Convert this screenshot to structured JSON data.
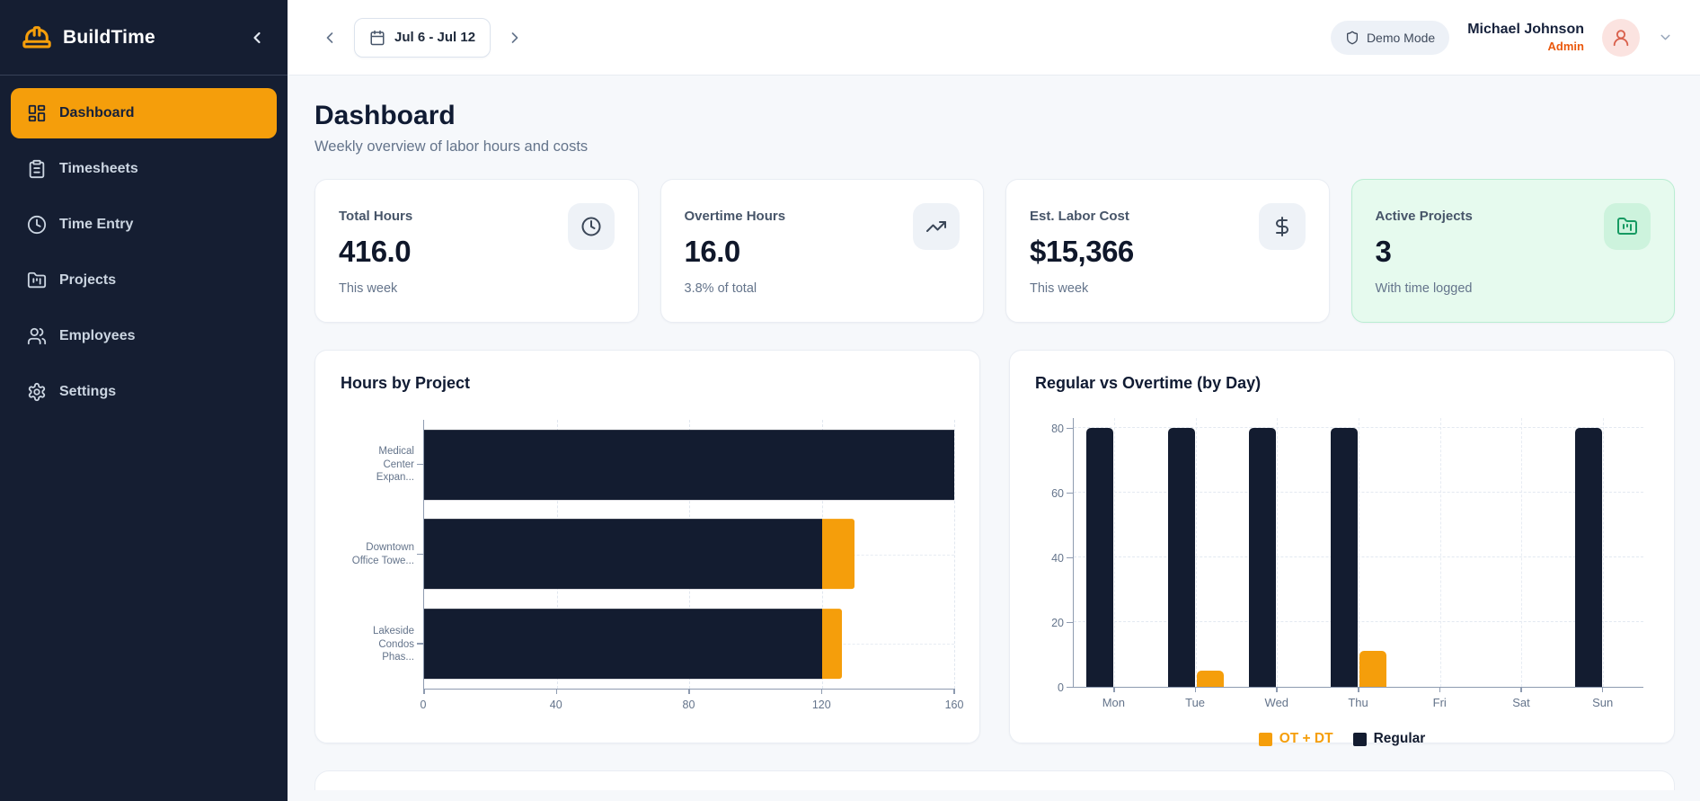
{
  "app": {
    "name": "BuildTime"
  },
  "sidebar": {
    "items": [
      {
        "label": "Dashboard",
        "icon": "dashboard-icon",
        "active": true
      },
      {
        "label": "Timesheets",
        "icon": "clipboard-icon",
        "active": false
      },
      {
        "label": "Time Entry",
        "icon": "clock-icon",
        "active": false
      },
      {
        "label": "Projects",
        "icon": "folder-kanban-icon",
        "active": false
      },
      {
        "label": "Employees",
        "icon": "users-icon",
        "active": false
      },
      {
        "label": "Settings",
        "icon": "gear-icon",
        "active": false
      }
    ]
  },
  "topbar": {
    "date_range": "Jul 6 - Jul 12",
    "demo_mode_label": "Demo Mode",
    "user": {
      "name": "Michael Johnson",
      "role": "Admin"
    }
  },
  "page": {
    "title": "Dashboard",
    "subtitle": "Weekly overview of labor hours and costs"
  },
  "stats": [
    {
      "label": "Total Hours",
      "value": "416.0",
      "sub": "This week",
      "icon": "clock-icon",
      "highlight": false
    },
    {
      "label": "Overtime Hours",
      "value": "16.0",
      "sub": "3.8% of total",
      "icon": "trending-up-icon",
      "highlight": false
    },
    {
      "label": "Est. Labor Cost",
      "value": "$15,366",
      "sub": "This week",
      "icon": "dollar-icon",
      "highlight": false
    },
    {
      "label": "Active Projects",
      "value": "3",
      "sub": "With time logged",
      "icon": "folder-icon",
      "highlight": true
    }
  ],
  "colors": {
    "accent_orange": "#f59e0b",
    "dark_navy": "#131c30",
    "sidebar_bg": "#151e32",
    "highlight_green_bg": "#e6faee",
    "highlight_green_border": "#b9edd2",
    "admin_role": "#ea580c",
    "muted_text": "#64748b"
  },
  "chart_data": [
    {
      "type": "bar",
      "orientation": "horizontal",
      "stacked": true,
      "title": "Hours by Project",
      "categories": [
        "Medical Center Expan...",
        "Downtown Office Towe...",
        "Lakeside Condos Phas..."
      ],
      "category_label_lines": [
        [
          "Medical",
          "Center",
          "Expan..."
        ],
        [
          "Downtown",
          "Office Towe..."
        ],
        [
          "Lakeside",
          "Condos",
          "Phas..."
        ]
      ],
      "series": [
        {
          "name": "Regular",
          "color": "#131c30",
          "values": [
            160,
            120,
            120
          ]
        },
        {
          "name": "OT + DT",
          "color": "#f59e0b",
          "values": [
            0,
            10,
            6
          ]
        }
      ],
      "xlim": [
        0,
        160
      ],
      "xticks": [
        0,
        40,
        80,
        120,
        160
      ],
      "grid": "dashed"
    },
    {
      "type": "bar",
      "orientation": "vertical",
      "grouped": true,
      "title": "Regular vs Overtime (by Day)",
      "categories": [
        "Mon",
        "Tue",
        "Wed",
        "Thu",
        "Fri",
        "Sat",
        "Sun"
      ],
      "series": [
        {
          "name": "OT + DT",
          "color": "#f59e0b",
          "values": [
            0,
            5,
            0,
            11,
            0,
            0,
            0
          ]
        },
        {
          "name": "Regular",
          "color": "#131c30",
          "values": [
            80,
            80,
            80,
            80,
            0,
            0,
            80
          ]
        }
      ],
      "ylim": [
        0,
        80
      ],
      "yticks": [
        0,
        20,
        40,
        60,
        80
      ],
      "legend": [
        "OT + DT",
        "Regular"
      ],
      "legend_position": "bottom",
      "grid": "dashed"
    }
  ]
}
